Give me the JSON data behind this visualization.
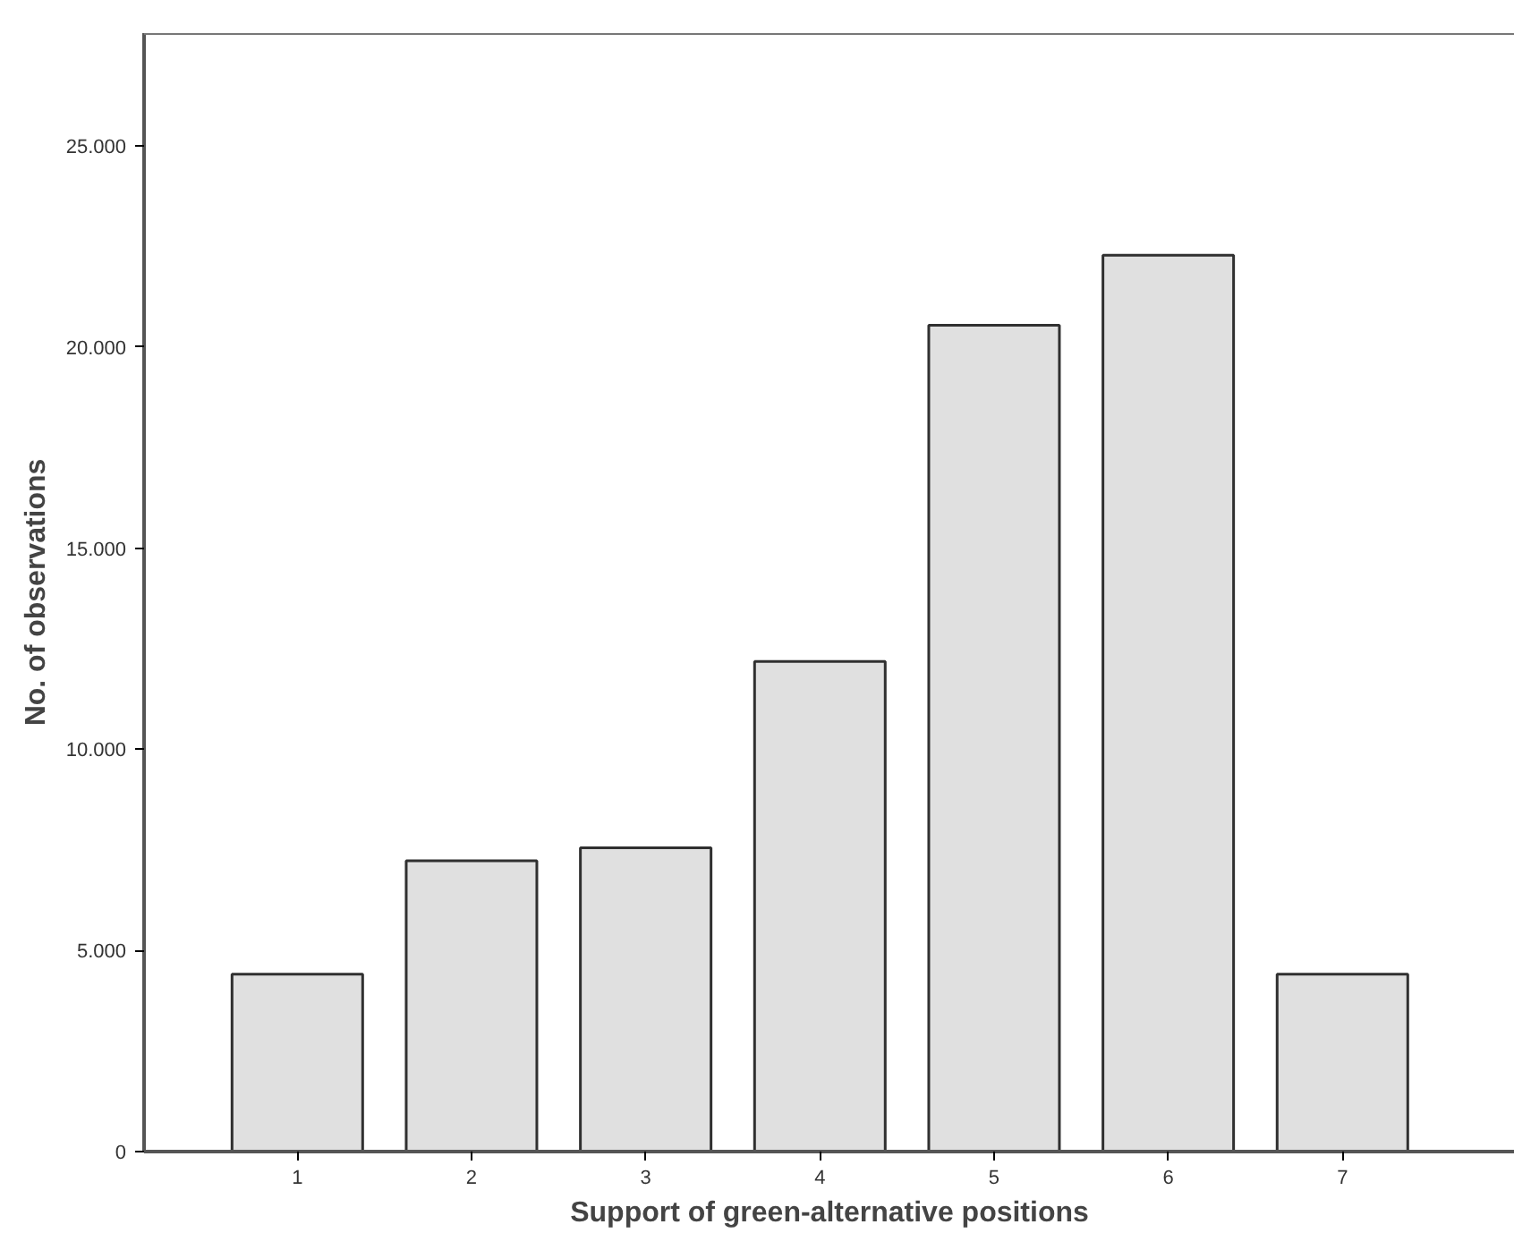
{
  "chart_data": {
    "type": "bar",
    "xlabel": "Support of green-alternative positions",
    "ylabel": "No. of observations",
    "categories": [
      "1",
      "2",
      "3",
      "4",
      "5",
      "6",
      "7"
    ],
    "values": [
      4410,
      7230,
      7550,
      12180,
      20540,
      22280,
      4410
    ],
    "color": "#e0e0e0",
    "ylim": [
      0,
      27800
    ],
    "yticks": [
      {
        "value": 0,
        "label": "0"
      },
      {
        "value": 5000,
        "label": "5.000"
      },
      {
        "value": 10000,
        "label": "10.000"
      },
      {
        "value": 15000,
        "label": "15.000"
      },
      {
        "value": 20000,
        "label": "20.000"
      },
      {
        "value": 25000,
        "label": "25.000"
      }
    ],
    "grid": false
  }
}
